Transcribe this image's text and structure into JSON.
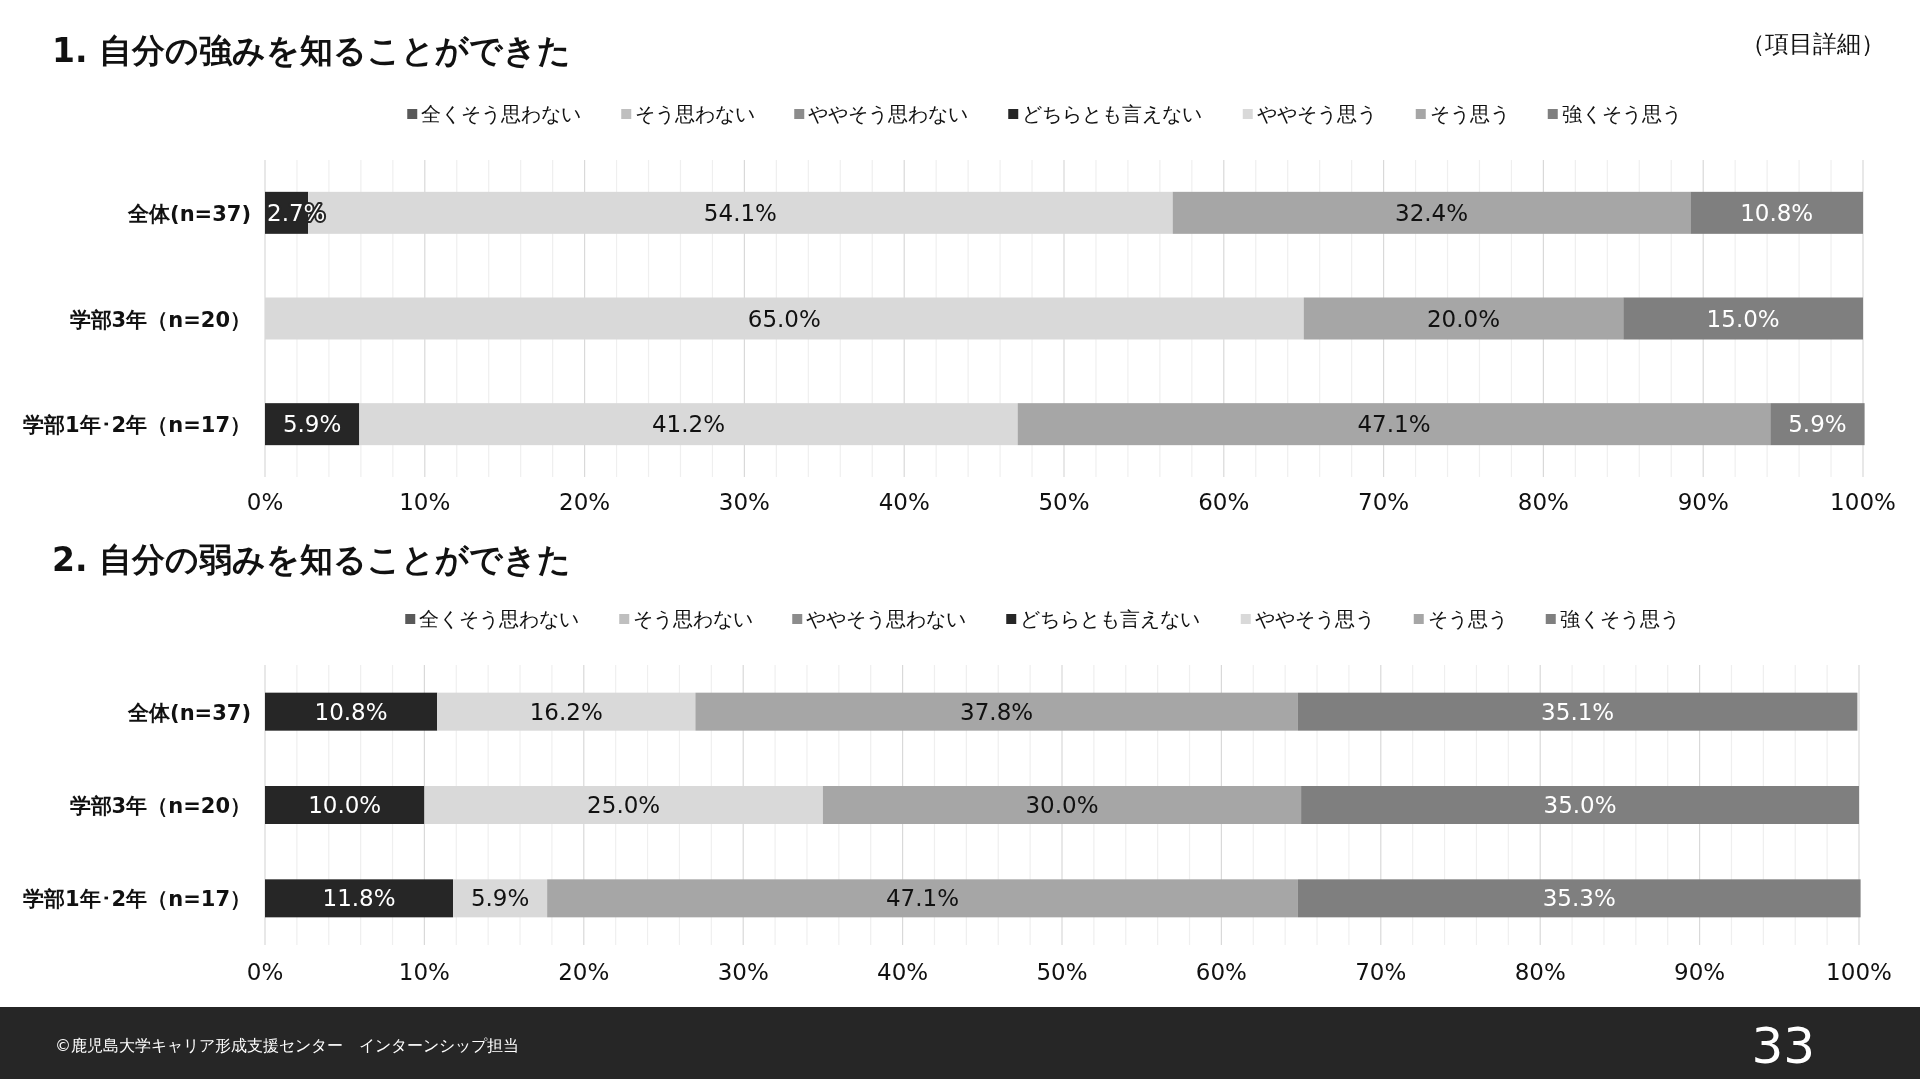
{
  "chart_data": [
    {
      "type": "bar",
      "orientation": "horizontal",
      "stacked": true,
      "title": "1. 自分の強みを知ることができた",
      "annotations": [
        "（項目詳細）"
      ],
      "categories": [
        "全体(n=37)",
        "学部3年（n=20）",
        "学部1年･2年（n=17）"
      ],
      "series": [
        {
          "name": "全くそう思わない",
          "color": "#595959",
          "values": [
            null,
            null,
            null
          ]
        },
        {
          "name": "そう思わない",
          "color": "#bfbfbf",
          "values": [
            null,
            null,
            null
          ]
        },
        {
          "name": "ややそう思わない",
          "color": "#8c8c8c",
          "values": [
            null,
            null,
            null
          ]
        },
        {
          "name": "どちらとも言えない",
          "color": "#262626",
          "values": [
            2.7,
            null,
            5.9
          ],
          "value_labels": [
            "2.7%",
            null,
            "5.9%"
          ]
        },
        {
          "name": "ややそう思う",
          "color": "#d9d9d9",
          "values": [
            54.1,
            65.0,
            41.2
          ],
          "value_labels": [
            "54.1%",
            "65.0%",
            "41.2%"
          ]
        },
        {
          "name": "そう思う",
          "color": "#a6a6a6",
          "values": [
            32.4,
            20.0,
            47.1
          ],
          "value_labels": [
            "32.4%",
            "20.0%",
            "47.1%"
          ]
        },
        {
          "name": "強くそう思う",
          "color": "#7f7f7f",
          "values": [
            10.8,
            15.0,
            5.9
          ],
          "value_labels": [
            "10.8%",
            "15.0%",
            "5.9%"
          ]
        }
      ],
      "xlim": [
        0,
        100
      ],
      "xticks": [
        {
          "value": 0,
          "label": "0%"
        },
        {
          "value": 2,
          "label": null
        },
        {
          "value": 4,
          "label": null
        },
        {
          "value": 6,
          "label": null
        },
        {
          "value": 8,
          "label": null
        },
        {
          "value": 10,
          "label": "10%"
        },
        {
          "value": 12,
          "label": null
        },
        {
          "value": 14,
          "label": null
        },
        {
          "value": 16,
          "label": null
        },
        {
          "value": 18,
          "label": null
        },
        {
          "value": 20,
          "label": "20%"
        },
        {
          "value": 22,
          "label": null
        },
        {
          "value": 24,
          "label": null
        },
        {
          "value": 26,
          "label": null
        },
        {
          "value": 28,
          "label": null
        },
        {
          "value": 30,
          "label": "30%"
        },
        {
          "value": 32,
          "label": null
        },
        {
          "value": 34,
          "label": null
        },
        {
          "value": 36,
          "label": null
        },
        {
          "value": 38,
          "label": null
        },
        {
          "value": 40,
          "label": "40%"
        },
        {
          "value": 42,
          "label": null
        },
        {
          "value": 44,
          "label": null
        },
        {
          "value": 46,
          "label": null
        },
        {
          "value": 48,
          "label": null
        },
        {
          "value": 50,
          "label": "50%"
        },
        {
          "value": 52,
          "label": null
        },
        {
          "value": 54,
          "label": null
        },
        {
          "value": 56,
          "label": null
        },
        {
          "value": 58,
          "label": null
        },
        {
          "value": 60,
          "label": "60%"
        },
        {
          "value": 62,
          "label": null
        },
        {
          "value": 64,
          "label": null
        },
        {
          "value": 66,
          "label": null
        },
        {
          "value": 68,
          "label": null
        },
        {
          "value": 70,
          "label": "70%"
        },
        {
          "value": 72,
          "label": null
        },
        {
          "value": 74,
          "label": null
        },
        {
          "value": 76,
          "label": null
        },
        {
          "value": 78,
          "label": null
        },
        {
          "value": 80,
          "label": "80%"
        },
        {
          "value": 82,
          "label": null
        },
        {
          "value": 84,
          "label": null
        },
        {
          "value": 86,
          "label": null
        },
        {
          "value": 88,
          "label": null
        },
        {
          "value": 90,
          "label": "90%"
        },
        {
          "value": 92,
          "label": null
        },
        {
          "value": 94,
          "label": null
        },
        {
          "value": 96,
          "label": null
        },
        {
          "value": 98,
          "label": null
        },
        {
          "value": 100,
          "label": "100%"
        }
      ],
      "grid": "x",
      "legend": "top"
    },
    {
      "type": "bar",
      "orientation": "horizontal",
      "stacked": true,
      "title": "2. 自分の弱みを知ることができた",
      "annotations": [
        "©鹿児島大学キャリア形成支援センター　インターンシップ担当",
        "33"
      ],
      "categories": [
        "全体(n=37)",
        "学部3年（n=20）",
        "学部1年･2年（n=17）"
      ],
      "series": [
        {
          "name": "全くそう思わない",
          "color": "#595959",
          "values": [
            null,
            null,
            null
          ]
        },
        {
          "name": "そう思わない",
          "color": "#bfbfbf",
          "values": [
            null,
            null,
            null
          ]
        },
        {
          "name": "ややそう思わない",
          "color": "#8c8c8c",
          "values": [
            null,
            null,
            null
          ]
        },
        {
          "name": "どちらとも言えない",
          "color": "#262626",
          "values": [
            10.8,
            10.0,
            11.8
          ],
          "value_labels": [
            "10.8%",
            "10.0%",
            "11.8%"
          ]
        },
        {
          "name": "ややそう思う",
          "color": "#d9d9d9",
          "values": [
            16.2,
            25.0,
            5.9
          ],
          "value_labels": [
            "16.2%",
            "25.0%",
            "5.9%"
          ]
        },
        {
          "name": "そう思う",
          "color": "#a6a6a6",
          "values": [
            37.8,
            30.0,
            47.1
          ],
          "value_labels": [
            "37.8%",
            "30.0%",
            "47.1%"
          ]
        },
        {
          "name": "強くそう思う",
          "color": "#7f7f7f",
          "values": [
            35.1,
            35.0,
            35.3
          ],
          "value_labels": [
            "35.1%",
            "35.0%",
            "35.3%"
          ]
        }
      ],
      "xlim": [
        0,
        100
      ],
      "xticks": [
        {
          "value": 0,
          "label": "0%"
        },
        {
          "value": 2,
          "label": null
        },
        {
          "value": 4,
          "label": null
        },
        {
          "value": 6,
          "label": null
        },
        {
          "value": 8,
          "label": null
        },
        {
          "value": 10,
          "label": "10%"
        },
        {
          "value": 12,
          "label": null
        },
        {
          "value": 14,
          "label": null
        },
        {
          "value": 16,
          "label": null
        },
        {
          "value": 18,
          "label": null
        },
        {
          "value": 20,
          "label": "20%"
        },
        {
          "value": 22,
          "label": null
        },
        {
          "value": 24,
          "label": null
        },
        {
          "value": 26,
          "label": null
        },
        {
          "value": 28,
          "label": null
        },
        {
          "value": 30,
          "label": "30%"
        },
        {
          "value": 32,
          "label": null
        },
        {
          "value": 34,
          "label": null
        },
        {
          "value": 36,
          "label": null
        },
        {
          "value": 38,
          "label": null
        },
        {
          "value": 40,
          "label": "40%"
        },
        {
          "value": 42,
          "label": null
        },
        {
          "value": 44,
          "label": null
        },
        {
          "value": 46,
          "label": null
        },
        {
          "value": 48,
          "label": null
        },
        {
          "value": 50,
          "label": "50%"
        },
        {
          "value": 52,
          "label": null
        },
        {
          "value": 54,
          "label": null
        },
        {
          "value": 56,
          "label": null
        },
        {
          "value": 58,
          "label": null
        },
        {
          "value": 60,
          "label": "60%"
        },
        {
          "value": 62,
          "label": null
        },
        {
          "value": 64,
          "label": null
        },
        {
          "value": 66,
          "label": null
        },
        {
          "value": 68,
          "label": null
        },
        {
          "value": 70,
          "label": "70%"
        },
        {
          "value": 72,
          "label": null
        },
        {
          "value": 74,
          "label": null
        },
        {
          "value": 76,
          "label": null
        },
        {
          "value": 78,
          "label": null
        },
        {
          "value": 80,
          "label": "80%"
        },
        {
          "value": 82,
          "label": null
        },
        {
          "value": 84,
          "label": null
        },
        {
          "value": 86,
          "label": null
        },
        {
          "value": 88,
          "label": null
        },
        {
          "value": 90,
          "label": "90%"
        },
        {
          "value": 92,
          "label": null
        },
        {
          "value": 94,
          "label": null
        },
        {
          "value": 96,
          "label": null
        },
        {
          "value": 98,
          "label": null
        },
        {
          "value": 100,
          "label": "100%"
        }
      ],
      "grid": "x",
      "legend": "top"
    }
  ]
}
